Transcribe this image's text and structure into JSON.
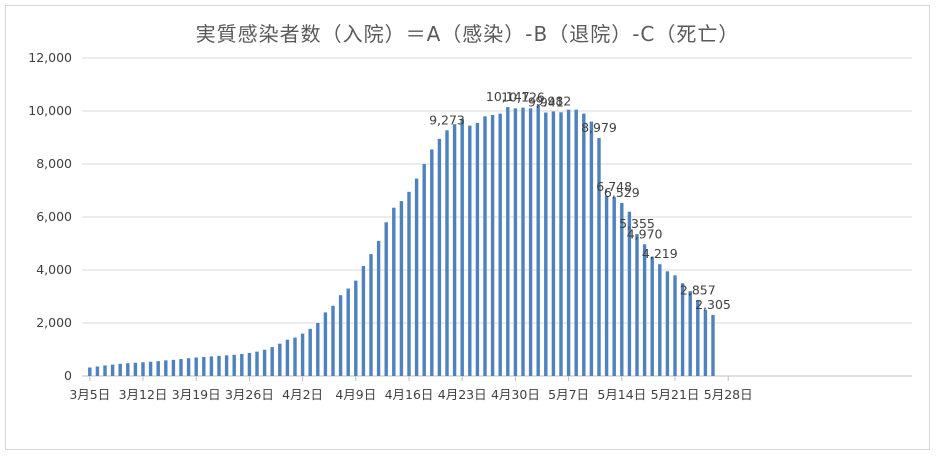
{
  "chart_data": {
    "type": "bar",
    "title": "実質感染者数（入院）＝A（感染）-B（退院）-C（死亡）",
    "xlabel": "",
    "ylabel": "",
    "ylim": [
      0,
      12000
    ],
    "yticks": [
      0,
      2000,
      4000,
      6000,
      8000,
      10000,
      12000
    ],
    "ytick_labels": [
      "0",
      "2,000",
      "4,000",
      "6,000",
      "8,000",
      "10,000",
      "12,000"
    ],
    "grid": true,
    "x_start_label": "3月5日",
    "xtick_labels": [
      "3月5日",
      "3月12日",
      "3月19日",
      "3月26日",
      "4月2日",
      "4月9日",
      "4月16日",
      "4月23日",
      "4月30日",
      "5月7日",
      "5月14日",
      "5月21日",
      "5月28日"
    ],
    "xtick_step_days": 7,
    "total_days": 91,
    "values": [
      320,
      360,
      400,
      430,
      460,
      480,
      500,
      520,
      540,
      560,
      590,
      610,
      640,
      670,
      700,
      720,
      740,
      760,
      780,
      800,
      830,
      870,
      920,
      990,
      1090,
      1220,
      1370,
      1450,
      1600,
      1780,
      2000,
      2400,
      2650,
      3050,
      3300,
      3600,
      4150,
      4600,
      5100,
      5800,
      6350,
      6600,
      6950,
      7450,
      8000,
      8550,
      8950,
      9273,
      9500,
      9700,
      9450,
      9550,
      9800,
      9850,
      9900,
      10147,
      10100,
      10126,
      10100,
      10200,
      9941,
      9982,
      9950,
      10050,
      10050,
      9900,
      9600,
      8979,
      6800,
      6748,
      6529,
      6200,
      5355,
      4970,
      4500,
      4219,
      3950,
      3800,
      3500,
      3200,
      2857,
      2500,
      2305
    ],
    "data_labels": [
      {
        "value": "9,273",
        "day": 47
      },
      {
        "value": "10,147",
        "day": 55
      },
      {
        "value": "10,126",
        "day": 57
      },
      {
        "value": "9,941",
        "day": 60
      },
      {
        "value": "9,982",
        "day": 61
      },
      {
        "value": "8,979",
        "day": 67
      },
      {
        "value": "6,748",
        "day": 69
      },
      {
        "value": "6,529",
        "day": 70
      },
      {
        "value": "5,355",
        "day": 72
      },
      {
        "value": "4,970",
        "day": 73
      },
      {
        "value": "4,219",
        "day": 75
      },
      {
        "value": "2,857",
        "day": 80
      },
      {
        "value": "2,305",
        "day": 82
      }
    ],
    "series_color": "#4f81bd"
  }
}
